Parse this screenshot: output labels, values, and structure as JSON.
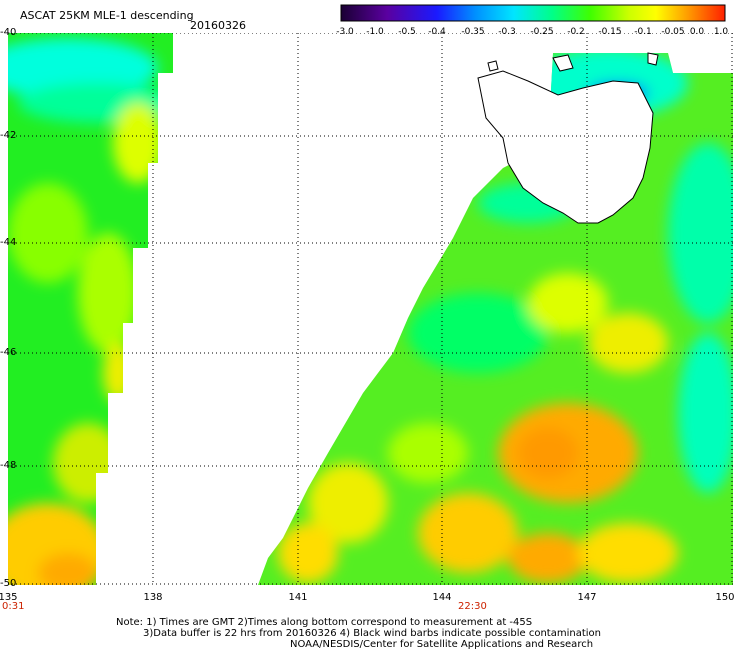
{
  "header": {
    "title": "ASCAT 25KM MLE-1 descending",
    "date": "20160326"
  },
  "colorbar": {
    "labels": [
      "-3.0",
      "-1.0",
      "-0.5",
      "-0.4",
      "-0.35",
      "-0.3",
      "-0.25",
      "-0.2",
      "-0.15",
      "-0.1",
      "-0.05",
      "0.0",
      "1.0"
    ]
  },
  "axes": {
    "lat_labels": [
      "-40",
      "-42",
      "-44",
      "-46",
      "-48",
      "-50"
    ],
    "lon_labels": [
      "135",
      "138",
      "141",
      "144",
      "147",
      "150"
    ]
  },
  "swath_times": {
    "left": "0:31",
    "right": "22:30"
  },
  "notes": {
    "line1": "Note: 1) Times are GMT 2)Times along bottom correspond to measurement at -45S",
    "line2": "3)Data buffer is 22 hrs from 20160326 4) Black wind barbs indicate possible contamination",
    "line3": "NOAA/NESDIS/Center for Satellite Applications and Research"
  },
  "colors": {
    "cyan": "#00ffff",
    "green": "#00ff33",
    "yellow": "#ffff00",
    "orange": "#ffaa00",
    "blue": "#0066ff"
  }
}
